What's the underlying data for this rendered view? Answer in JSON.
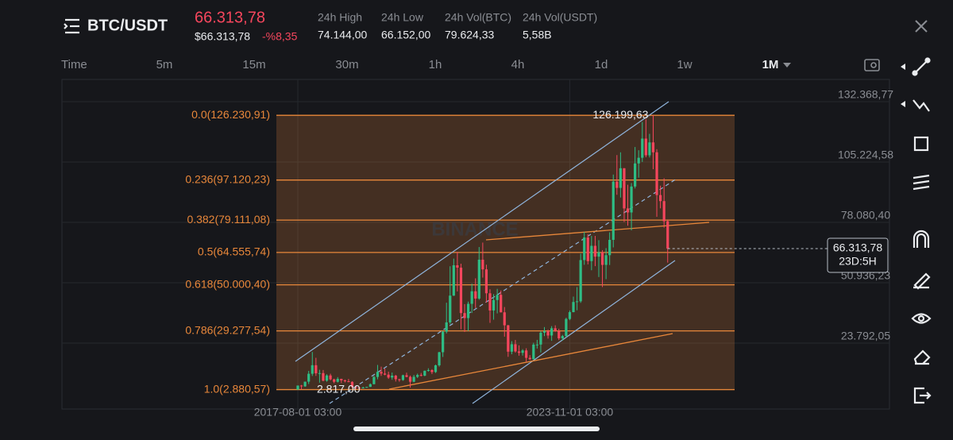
{
  "header": {
    "symbol": "BTC/USDT",
    "price": "66.313,78",
    "price_usd": "$66.313,78",
    "change": "-%8,35",
    "stats": [
      {
        "label": "24h High",
        "value": "74.144,00"
      },
      {
        "label": "24h Low",
        "value": "66.152,00"
      },
      {
        "label": "24h Vol(BTC)",
        "value": "79.624,33"
      },
      {
        "label": "24h Vol(USDT)",
        "value": "5,58B"
      }
    ]
  },
  "timeframes": {
    "items": [
      "Time",
      "5m",
      "15m",
      "30m",
      "1h",
      "4h",
      "1d",
      "1w",
      "1M"
    ],
    "active": 8
  },
  "chart_data": {
    "type": "candlestick",
    "watermark": "BINANCE",
    "up_color": "#2ebd85",
    "down_color": "#f6465d",
    "fib_color": "#e8873a",
    "grid": true,
    "ylim": [
      -5852,
      142369
    ],
    "yticks": [
      {
        "value": 132368.77,
        "label": "132.368,77"
      },
      {
        "value": 105224.58,
        "label": "105.224,58"
      },
      {
        "value": 78080.4,
        "label": "78.080,40"
      },
      {
        "value": 50936.23,
        "label": "50.936,23"
      },
      {
        "value": 23792.05,
        "label": "23.792,05"
      }
    ],
    "fib_levels": [
      {
        "value": 126230.91,
        "label": "0.0(126.230,91)"
      },
      {
        "value": 97120.23,
        "label": "0.236(97.120,23)"
      },
      {
        "value": 79111.08,
        "label": "0.382(79.111,08)"
      },
      {
        "value": 64555.74,
        "label": "0.5(64.555,74)"
      },
      {
        "value": 50000.4,
        "label": "0.618(50.000,40)"
      },
      {
        "value": 29277.54,
        "label": "0.786(29.277,54)"
      },
      {
        "value": 2880.57,
        "label": "1.0(2.880,57)"
      }
    ],
    "annotations": [
      {
        "value": 126199.63,
        "label": "126.199,63"
      },
      {
        "value": 2817.0,
        "label": "2.817,00"
      }
    ],
    "last_price": {
      "value": 66313.78,
      "label": "66.313,78"
    },
    "countdown": "23D:5H",
    "categories": [
      "2017-08-01 03:00",
      null,
      null,
      null,
      null,
      null,
      null,
      null,
      null,
      null,
      null,
      null,
      null,
      null,
      null,
      null,
      null,
      null,
      null,
      null,
      null,
      null,
      null,
      null,
      null,
      null,
      null,
      null,
      null,
      null,
      null,
      null,
      null,
      null,
      null,
      null,
      null,
      null,
      null,
      null,
      null,
      null,
      null,
      null,
      null,
      null,
      null,
      null,
      null,
      null,
      null,
      null,
      null,
      null,
      null,
      null,
      null,
      null,
      null,
      null,
      null,
      null,
      null,
      null,
      null,
      null,
      null,
      null,
      null,
      null,
      null,
      null,
      null,
      null,
      null,
      "2023-11-01 03:00",
      null,
      null,
      null,
      null,
      null,
      null,
      null,
      null,
      null,
      null,
      null,
      null,
      null,
      null,
      null,
      null,
      null,
      null,
      null,
      null,
      null,
      null,
      null,
      null,
      null,
      null,
      null
    ],
    "candles": [
      [
        2870,
        4750,
        2817,
        4700
      ],
      [
        4700,
        4980,
        2970,
        4340
      ],
      [
        4340,
        6470,
        4110,
        6450
      ],
      [
        6450,
        11300,
        5380,
        10000
      ],
      [
        10000,
        19800,
        9000,
        13850
      ],
      [
        13850,
        17180,
        9050,
        10200
      ],
      [
        10200,
        11790,
        6000,
        10300
      ],
      [
        10300,
        11700,
        6600,
        6900
      ],
      [
        6900,
        9770,
        6430,
        9240
      ],
      [
        9240,
        10020,
        7040,
        7490
      ],
      [
        7490,
        7780,
        5750,
        6390
      ],
      [
        6390,
        8500,
        6070,
        7730
      ],
      [
        7730,
        7760,
        5880,
        7030
      ],
      [
        7030,
        7410,
        6100,
        6630
      ],
      [
        6630,
        7680,
        6200,
        6370
      ],
      [
        6370,
        6600,
        3650,
        4040
      ],
      [
        4040,
        4400,
        3150,
        3740
      ],
      [
        3740,
        4140,
        3350,
        3450
      ],
      [
        3450,
        4200,
        3380,
        3820
      ],
      [
        3820,
        4140,
        3730,
        4100
      ],
      [
        4100,
        5640,
        4070,
        5320
      ],
      [
        5320,
        9080,
        5280,
        8570
      ],
      [
        8570,
        13970,
        7510,
        10860
      ],
      [
        10860,
        13200,
        9060,
        10090
      ],
      [
        10090,
        12330,
        9330,
        9600
      ],
      [
        9600,
        10950,
        7700,
        8300
      ],
      [
        8300,
        10540,
        7300,
        9150
      ],
      [
        9150,
        9530,
        6520,
        7540
      ],
      [
        7540,
        7740,
        6430,
        7200
      ],
      [
        7200,
        9580,
        6850,
        9350
      ],
      [
        9350,
        10500,
        8410,
        8600
      ],
      [
        8600,
        9190,
        3780,
        6410
      ],
      [
        6410,
        9480,
        6150,
        8620
      ],
      [
        8620,
        10070,
        8100,
        9450
      ],
      [
        9450,
        10380,
        8830,
        9140
      ],
      [
        9140,
        11450,
        8900,
        11350
      ],
      [
        11350,
        12470,
        10980,
        11650
      ],
      [
        11650,
        12070,
        9880,
        10780
      ],
      [
        10780,
        14100,
        10370,
        13800
      ],
      [
        13800,
        19860,
        13200,
        19700
      ],
      [
        19700,
        29300,
        17570,
        28920
      ],
      [
        28920,
        41950,
        28130,
        33100
      ],
      [
        33100,
        58350,
        32300,
        45140
      ],
      [
        45140,
        61790,
        45000,
        58800
      ],
      [
        58800,
        64850,
        47040,
        57720
      ],
      [
        57720,
        59500,
        30000,
        37300
      ],
      [
        37300,
        41330,
        28800,
        35040
      ],
      [
        35040,
        42450,
        29280,
        41460
      ],
      [
        41460,
        50500,
        37330,
        47100
      ],
      [
        47100,
        52920,
        39600,
        43820
      ],
      [
        43820,
        67000,
        43280,
        61300
      ],
      [
        61300,
        69000,
        53250,
        56950
      ],
      [
        56950,
        59050,
        42000,
        46200
      ],
      [
        46200,
        47990,
        32900,
        38470
      ],
      [
        38470,
        45820,
        34320,
        43160
      ],
      [
        43160,
        48190,
        37150,
        45510
      ],
      [
        45510,
        47440,
        37580,
        37630
      ],
      [
        37630,
        40020,
        26700,
        31800
      ],
      [
        31800,
        31980,
        17620,
        19940
      ],
      [
        19940,
        24670,
        18780,
        23290
      ],
      [
        23290,
        25210,
        19520,
        20050
      ],
      [
        20050,
        22800,
        18130,
        19420
      ],
      [
        19420,
        21080,
        18190,
        20490
      ],
      [
        20490,
        21470,
        15480,
        17160
      ],
      [
        17160,
        18390,
        16260,
        16540
      ],
      [
        16540,
        23960,
        16500,
        23120
      ],
      [
        23120,
        25250,
        21350,
        23140
      ],
      [
        23140,
        29180,
        19550,
        28470
      ],
      [
        28470,
        31000,
        26940,
        29230
      ],
      [
        29230,
        29820,
        25810,
        27210
      ],
      [
        27210,
        31430,
        24800,
        30470
      ],
      [
        30470,
        31800,
        28860,
        29230
      ],
      [
        29230,
        30240,
        25170,
        25940
      ],
      [
        25940,
        27480,
        24900,
        26960
      ],
      [
        26960,
        35200,
        26540,
        34640
      ],
      [
        34640,
        38450,
        34090,
        37720
      ],
      [
        37720,
        44700,
        37620,
        42280
      ],
      [
        42280,
        48970,
        38550,
        42580
      ],
      [
        42580,
        64000,
        41880,
        61130
      ],
      [
        61130,
        73780,
        59000,
        71280
      ],
      [
        71280,
        72800,
        59190,
        60670
      ],
      [
        60670,
        71980,
        56550,
        67540
      ],
      [
        67540,
        72000,
        58400,
        62680
      ],
      [
        62680,
        70080,
        53500,
        64620
      ],
      [
        64620,
        65600,
        49000,
        58970
      ],
      [
        58970,
        66500,
        52550,
        63330
      ],
      [
        63330,
        73620,
        58900,
        70220
      ],
      [
        70220,
        99590,
        66830,
        96410
      ],
      [
        96410,
        108350,
        90500,
        93580
      ],
      [
        93580,
        109590,
        89260,
        102430
      ],
      [
        102430,
        102500,
        78260,
        84350
      ],
      [
        84350,
        95000,
        76600,
        82550
      ],
      [
        82550,
        95760,
        74500,
        94210
      ],
      [
        94210,
        111980,
        93350,
        104590
      ],
      [
        104590,
        110530,
        98200,
        107140
      ],
      [
        107140,
        123220,
        105250,
        115760
      ],
      [
        115760,
        124470,
        107350,
        108250
      ],
      [
        108250,
        117900,
        107270,
        114050
      ],
      [
        114050,
        126199.63,
        102000,
        109600
      ],
      [
        109600,
        111000,
        80600,
        90360
      ],
      [
        90360,
        94600,
        84400,
        87650
      ],
      [
        87650,
        97900,
        75700,
        78600
      ],
      [
        78600,
        79400,
        60000,
        66313.78
      ]
    ]
  }
}
